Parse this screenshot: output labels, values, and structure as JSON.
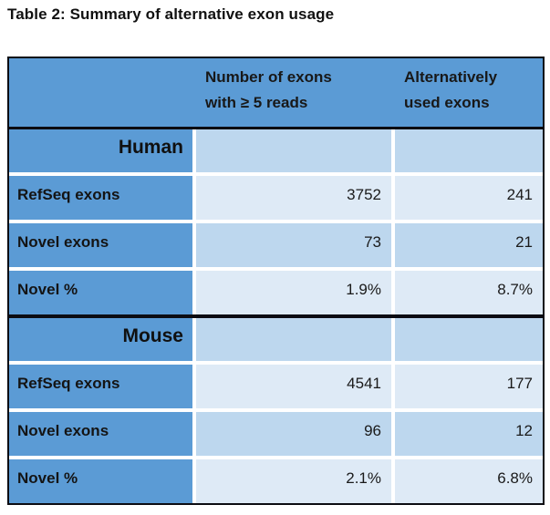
{
  "title": "Table 2: Summary of alternative exon usage",
  "table": {
    "header": {
      "col2": {
        "line1": "Number of exons",
        "line2": "with ≥ 5 reads"
      },
      "col3": {
        "line1": "Alternatively",
        "line2": "used exons"
      }
    },
    "sections": [
      {
        "name": "Human",
        "rows": [
          {
            "label": "RefSeq exons",
            "values": [
              "3752",
              "241"
            ]
          },
          {
            "label": "Novel exons",
            "values": [
              "73",
              "21"
            ]
          },
          {
            "label": "Novel %",
            "values": [
              "1.9%",
              "8.7%"
            ]
          }
        ]
      },
      {
        "name": "Mouse",
        "rows": [
          {
            "label": "RefSeq exons",
            "values": [
              "4541",
              "177"
            ]
          },
          {
            "label": "Novel exons",
            "values": [
              "96",
              "12"
            ]
          },
          {
            "label": "Novel %",
            "values": [
              "2.1%",
              "6.8%"
            ]
          }
        ]
      }
    ],
    "colors": {
      "accent_blue": "#5b9bd5",
      "band_medium": "#bdd7ee",
      "band_light": "#deeaf6",
      "border_black": "#0c0c12",
      "separator_white": "#ffffff",
      "text": "#161616"
    }
  }
}
